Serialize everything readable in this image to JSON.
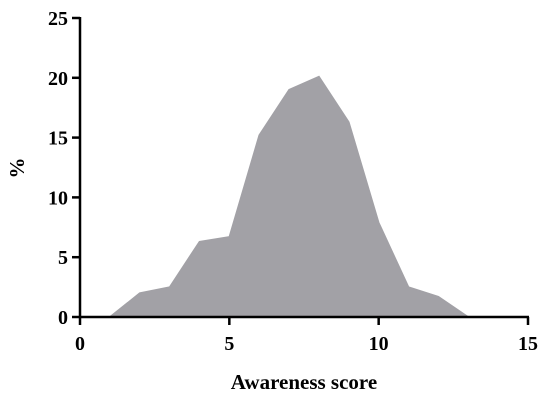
{
  "chart_data": {
    "type": "area",
    "x_label": "Awareness score",
    "y_label": "%",
    "x": [
      0,
      1,
      2,
      3,
      4,
      5,
      6,
      7,
      8,
      9,
      10,
      11,
      12,
      13
    ],
    "series": [
      {
        "color": "#a2a1a6",
        "values": [
          0,
          0,
          2.0,
          2.5,
          6.3,
          6.7,
          15.2,
          19.0,
          20.1,
          16.3,
          7.9,
          2.5,
          1.7,
          0
        ]
      }
    ],
    "xlim": [
      0,
      15
    ],
    "xticks": [
      0,
      5,
      10,
      15
    ],
    "ylim": [
      0,
      25
    ],
    "yticks": [
      0,
      5,
      10,
      15,
      20,
      25
    ]
  }
}
